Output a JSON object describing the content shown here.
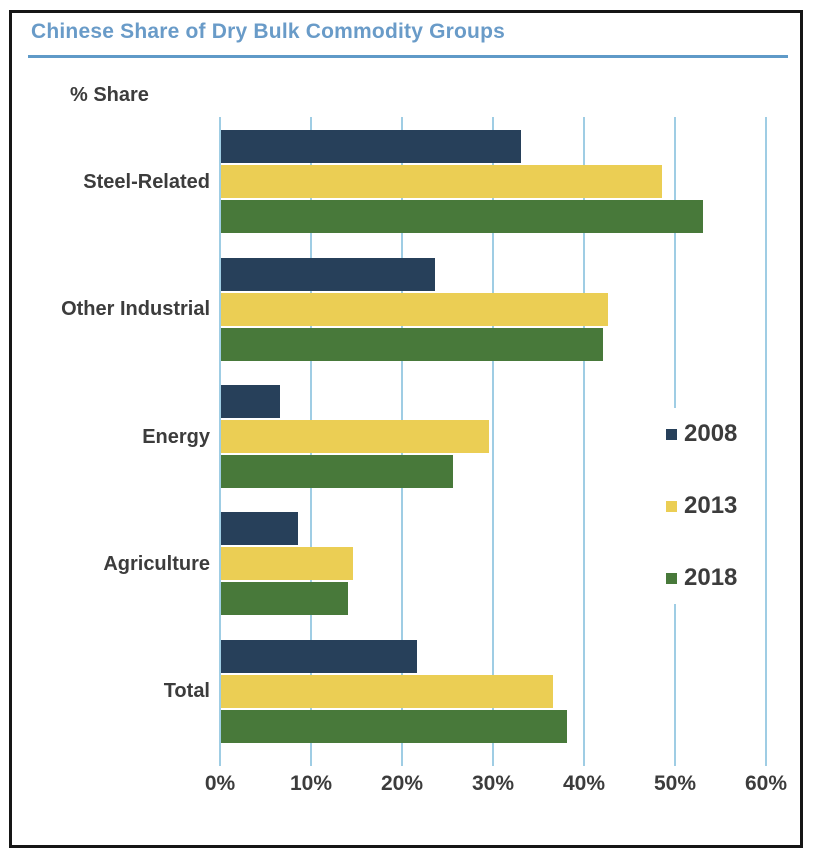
{
  "window": {
    "title": "Chinese Share of Dry Bulk Commodity Groups"
  },
  "colors": {
    "title_text": "#699BC8",
    "title_rule": "#5F9AC8",
    "gridline": "#9FCDE4",
    "label_text": "#3C3C3C",
    "frame_border": "#161616",
    "background": "#FFFFFF",
    "series_2008": "#27405A",
    "series_2013": "#EBCE54",
    "series_2018": "#48793A"
  },
  "chart_data": {
    "type": "bar",
    "orientation": "horizontal",
    "title": "Chinese Share of Dry Bulk Commodity Groups",
    "value_axis_label": "% Share",
    "categories": [
      "Steel-Related",
      "Other Industrial",
      "Energy",
      "Agriculture",
      "Total"
    ],
    "series": [
      {
        "name": "2008",
        "color": "#27405A",
        "values": [
          33,
          23.5,
          6.5,
          8.5,
          21.5
        ]
      },
      {
        "name": "2013",
        "color": "#EBCE54",
        "values": [
          48.5,
          42.5,
          29.5,
          14.5,
          36.5
        ]
      },
      {
        "name": "2018",
        "color": "#48793A",
        "values": [
          53,
          42,
          25.5,
          14,
          38
        ]
      }
    ],
    "xlim": [
      0,
      60
    ],
    "x_ticks": {
      "values": [
        0,
        10,
        20,
        30,
        40,
        50,
        60
      ],
      "labels": [
        "0%",
        "10%",
        "20%",
        "30%",
        "40%",
        "50%",
        "60%"
      ]
    },
    "grid": true,
    "legend_position": "right-middle",
    "legend_entries": [
      "2008",
      "2013",
      "2018"
    ]
  }
}
